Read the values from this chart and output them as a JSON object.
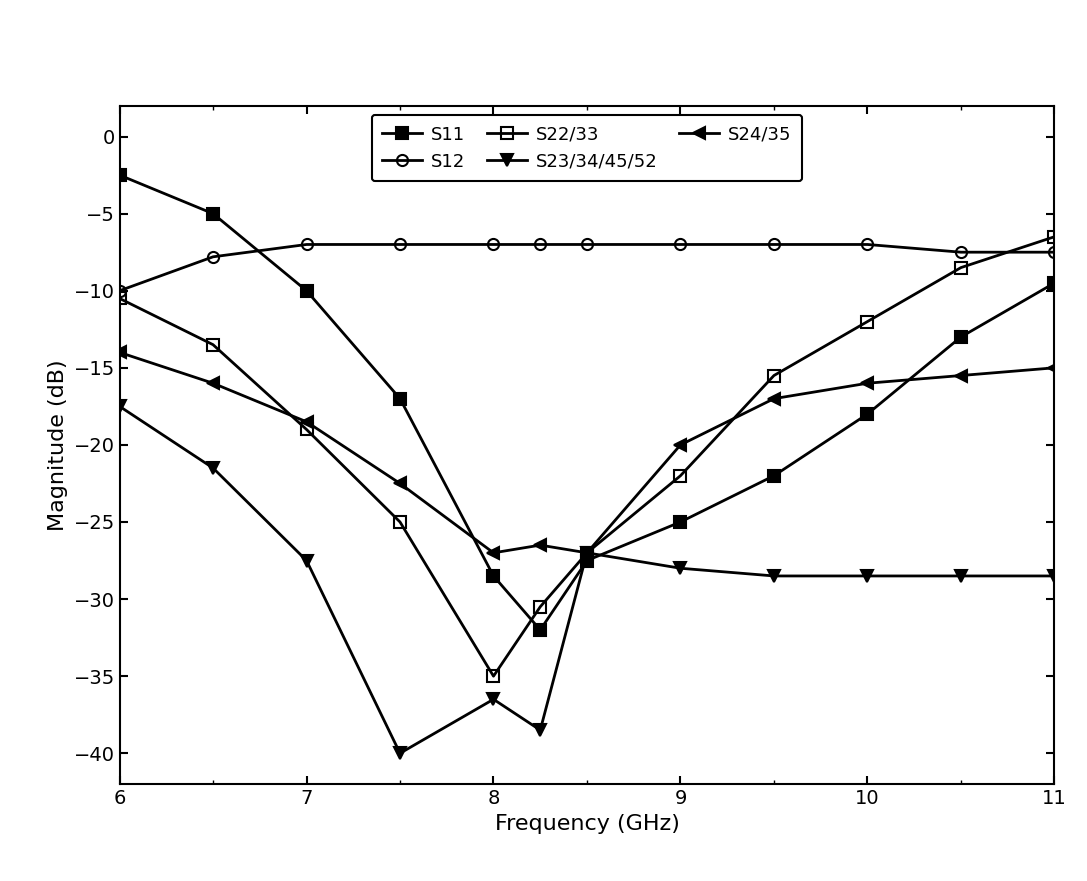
{
  "title": "",
  "xlabel": "Frequency (GHz)",
  "ylabel": "Magnitude (dB)",
  "xlim": [
    6,
    11
  ],
  "ylim": [
    -42,
    2
  ],
  "yticks": [
    0,
    -5,
    -10,
    -15,
    -20,
    -25,
    -30,
    -35,
    -40
  ],
  "xticks": [
    6,
    7,
    8,
    9,
    10,
    11
  ],
  "series": [
    {
      "label": "S11",
      "x": [
        6.0,
        6.5,
        7.0,
        7.5,
        8.0,
        8.25,
        8.5,
        9.0,
        9.5,
        10.0,
        10.5,
        11.0
      ],
      "y": [
        -2.5,
        -5.0,
        -10.0,
        -17.0,
        -28.5,
        -32.0,
        -27.5,
        -25.0,
        -22.0,
        -18.0,
        -13.0,
        -9.5
      ],
      "marker": "s",
      "markersize": 8,
      "markerfacecolor": "black",
      "markeredgecolor": "black",
      "linewidth": 2.0,
      "color": "black",
      "fillstyle": "full"
    },
    {
      "label": "S12",
      "x": [
        6.0,
        6.5,
        7.0,
        7.5,
        8.0,
        8.25,
        8.5,
        9.0,
        9.5,
        10.0,
        10.5,
        11.0
      ],
      "y": [
        -10.0,
        -7.8,
        -7.0,
        -7.0,
        -7.0,
        -7.0,
        -7.0,
        -7.0,
        -7.0,
        -7.0,
        -7.5,
        -7.5
      ],
      "marker": "o",
      "markersize": 8,
      "markerfacecolor": "white",
      "markeredgecolor": "black",
      "linewidth": 2.0,
      "color": "black",
      "fillstyle": "none"
    },
    {
      "label": "S22/33",
      "x": [
        6.0,
        6.5,
        7.0,
        7.5,
        8.0,
        8.25,
        8.5,
        9.0,
        9.5,
        10.0,
        10.5,
        11.0
      ],
      "y": [
        -10.5,
        -13.5,
        -19.0,
        -25.0,
        -35.0,
        -30.5,
        -27.0,
        -22.0,
        -15.5,
        -12.0,
        -8.5,
        -6.5
      ],
      "marker": "s",
      "markersize": 8,
      "markerfacecolor": "white",
      "markeredgecolor": "black",
      "linewidth": 2.0,
      "color": "black",
      "fillstyle": "none"
    },
    {
      "label": "S23/34/45/52",
      "x": [
        6.0,
        6.5,
        7.0,
        7.5,
        8.0,
        8.25,
        8.5,
        9.0,
        9.5,
        10.0,
        10.5,
        11.0
      ],
      "y": [
        -17.5,
        -21.5,
        -27.5,
        -40.0,
        -36.5,
        -38.5,
        -27.0,
        -28.0,
        -28.5,
        -28.5,
        -28.5,
        -28.5
      ],
      "marker": "v",
      "markersize": 9,
      "markerfacecolor": "black",
      "markeredgecolor": "black",
      "linewidth": 2.0,
      "color": "black",
      "fillstyle": "full"
    },
    {
      "label": "S24/35",
      "x": [
        6.0,
        6.5,
        7.0,
        7.5,
        8.0,
        8.25,
        8.5,
        9.0,
        9.5,
        10.0,
        10.5,
        11.0
      ],
      "y": [
        -14.0,
        -16.0,
        -18.5,
        -22.5,
        -27.0,
        -26.5,
        -27.0,
        -20.0,
        -17.0,
        -16.0,
        -15.5,
        -15.0
      ],
      "marker": "<",
      "markersize": 9,
      "markerfacecolor": "black",
      "markeredgecolor": "black",
      "linewidth": 2.0,
      "color": "black",
      "fillstyle": "full"
    }
  ],
  "background_color": "white",
  "figsize": [
    10.87,
    8.81
  ],
  "dpi": 100
}
